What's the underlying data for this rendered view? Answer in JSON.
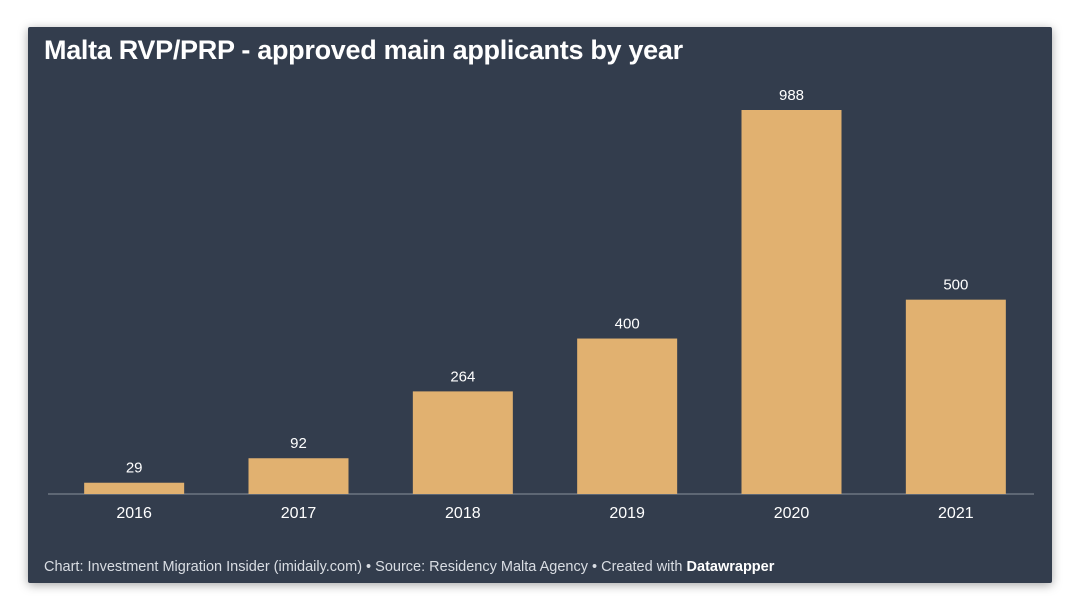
{
  "chart_data": {
    "type": "bar",
    "title": "Malta RVP/PRP - approved main applicants by year",
    "categories": [
      "2016",
      "2017",
      "2018",
      "2019",
      "2020",
      "2021"
    ],
    "values": [
      29,
      92,
      264,
      400,
      988,
      500
    ],
    "xlabel": "",
    "ylabel": "",
    "ylim": [
      0,
      1000
    ],
    "grid": false,
    "legend": "none"
  },
  "footer": {
    "chart_credit": "Chart: Investment Migration Insider (imidaily.com)",
    "separator": " • ",
    "source": "Source: Residency Malta Agency",
    "created_with": "Created with ",
    "tool": "Datawrapper"
  },
  "colors": {
    "background": "#333d4d",
    "bar": "#e1b170",
    "axis": "#8a919c",
    "text": "#ffffff"
  }
}
